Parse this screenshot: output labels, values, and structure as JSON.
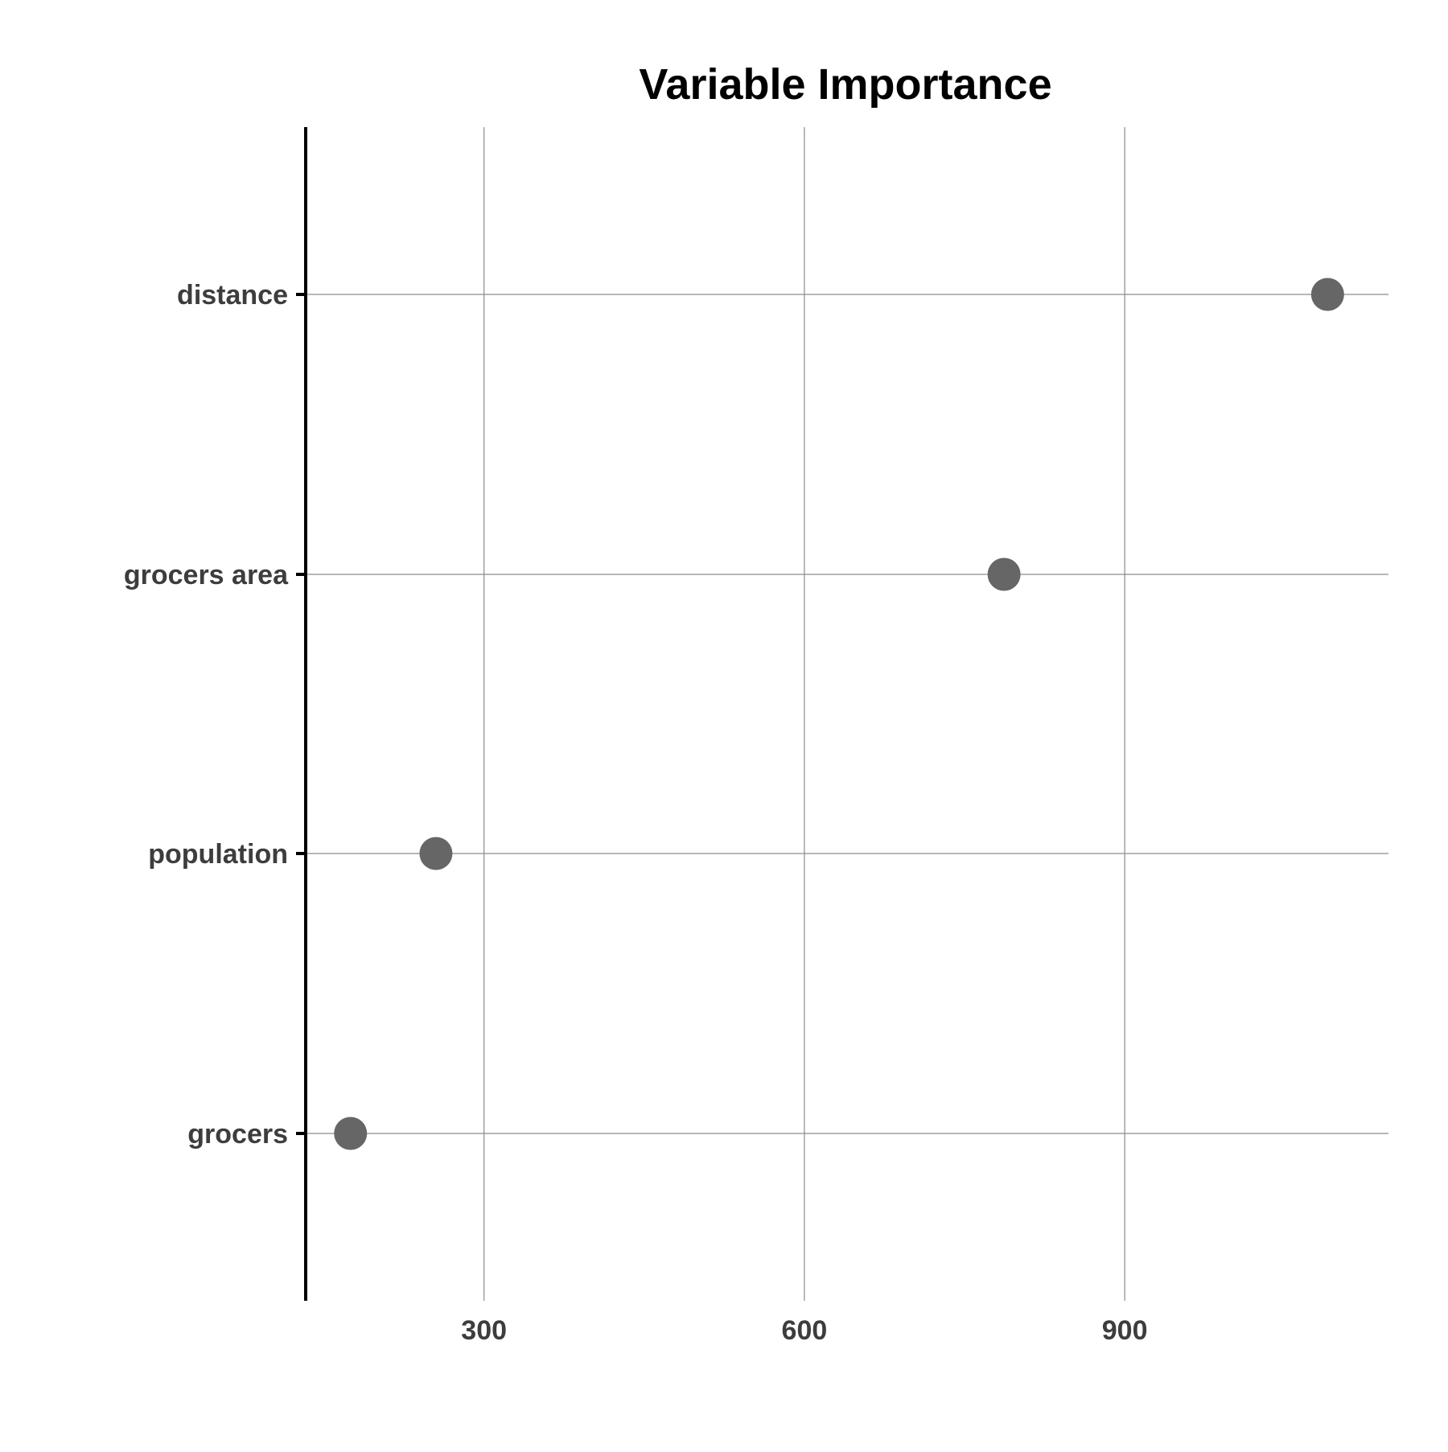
{
  "chart_data": {
    "type": "scatter",
    "title": "Variable Importance",
    "xlabel": "",
    "ylabel": "",
    "categories": [
      "distance",
      "grocers area",
      "population",
      "grocers"
    ],
    "values": [
      1090,
      787,
      255,
      175
    ],
    "x_ticks": [
      300,
      600,
      900
    ],
    "x_tick_labels": [
      "300",
      "600",
      "900"
    ],
    "xlim": [
      133,
      1147
    ],
    "grid": true,
    "legend": "none",
    "point_color": "#666666"
  }
}
